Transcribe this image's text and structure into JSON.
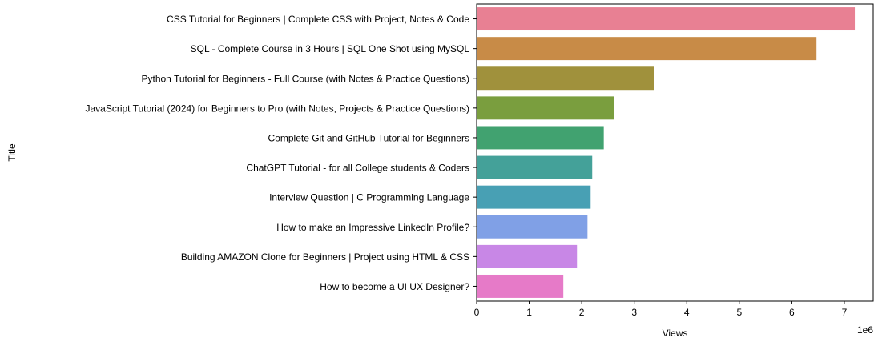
{
  "chart_data": {
    "type": "bar",
    "orientation": "horizontal",
    "title": "",
    "xlabel": "Views",
    "ylabel": "Title",
    "x_offset_label": "1e6",
    "x_scale": 1000000,
    "xlim": [
      0,
      7550000
    ],
    "xticks": [
      0,
      1,
      2,
      3,
      4,
      5,
      6,
      7
    ],
    "grid": false,
    "categories": [
      "CSS Tutorial for Beginners | Complete CSS with Project, Notes & Code",
      "SQL - Complete Course in 3 Hours | SQL One Shot using MySQL",
      "Python Tutorial for Beginners - Full Course (with Notes & Practice Questions)",
      "JavaScript Tutorial (2024) for Beginners to Pro (with Notes, Projects & Practice Questions)",
      "Complete Git and GitHub Tutorial for Beginners",
      "ChatGPT Tutorial - for all College students & Coders",
      "Interview Question | C Programming Language",
      "How to make an Impressive LinkedIn Profile?",
      "Building AMAZON Clone for Beginners | Project using HTML & CSS",
      "How to become a UI UX Designer?"
    ],
    "values": [
      7200000,
      6470000,
      3380000,
      2610000,
      2420000,
      2200000,
      2170000,
      2110000,
      1910000,
      1650000
    ],
    "colors": [
      "#e88093",
      "#c88b47",
      "#a0913c",
      "#7a9e3e",
      "#41a270",
      "#44a199",
      "#48a0b4",
      "#80a0e6",
      "#c887e6",
      "#e67ac8"
    ]
  }
}
